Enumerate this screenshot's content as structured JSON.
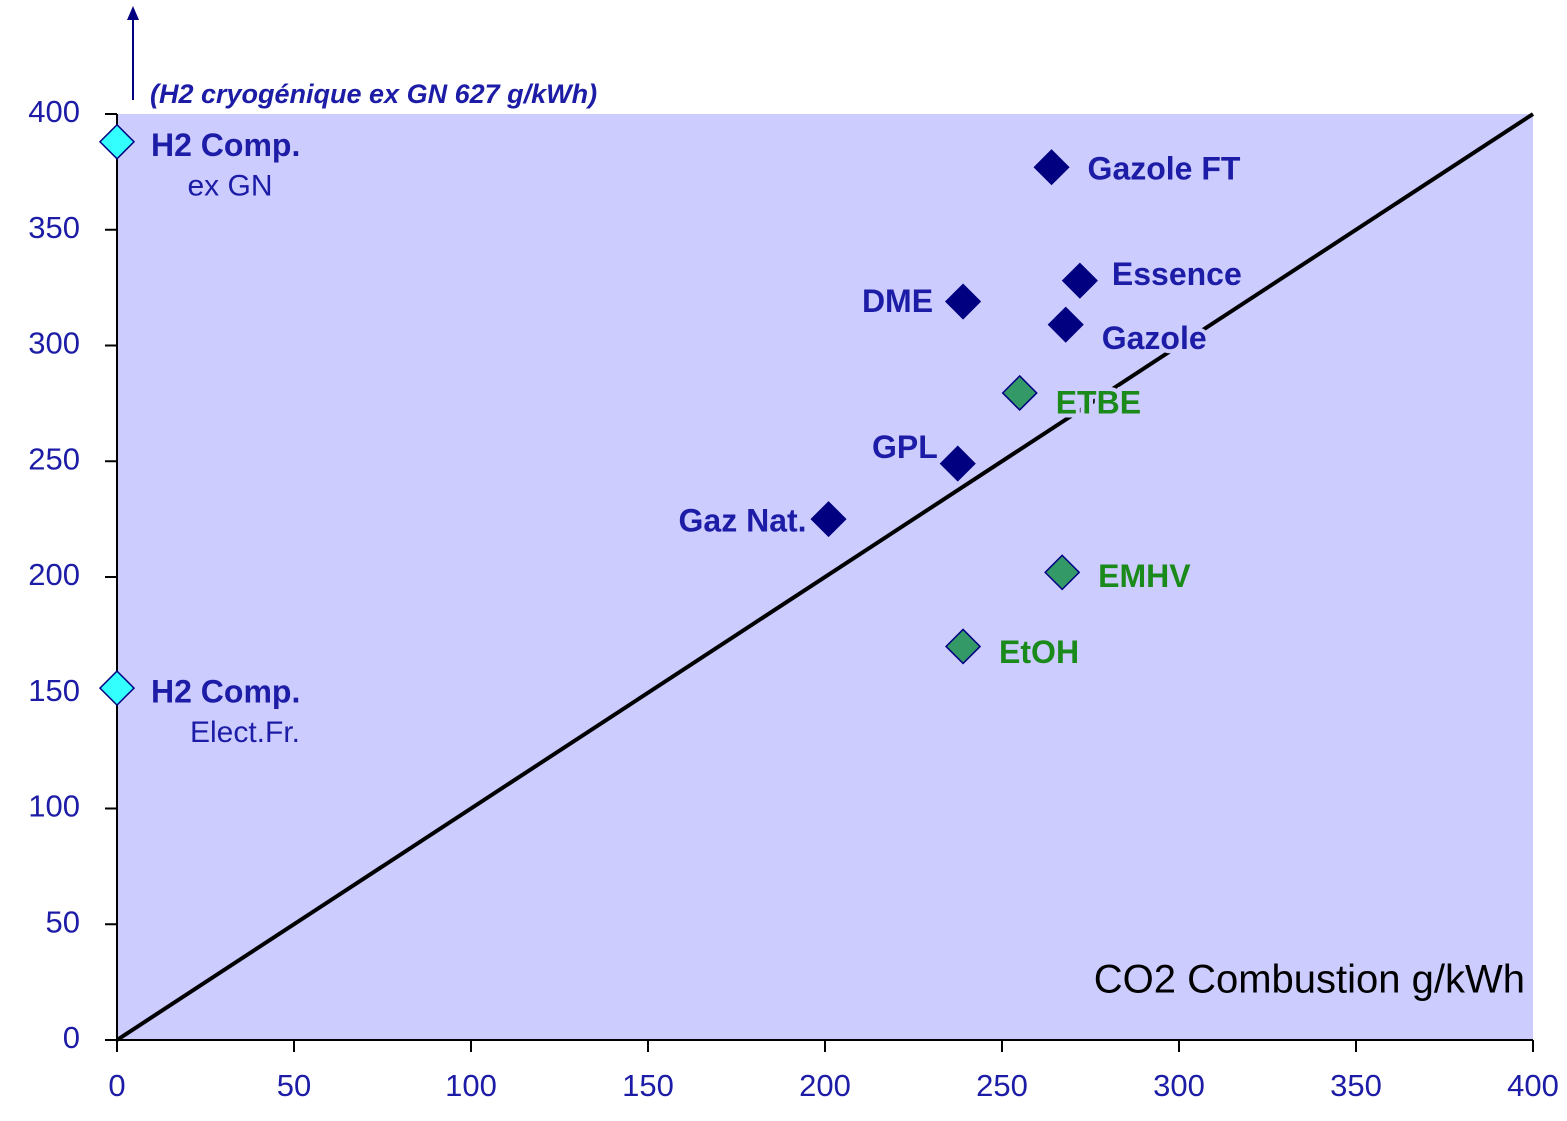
{
  "chart_data": {
    "type": "scatter",
    "annotation": "(H2 cryogénique ex GN 627 g/kWh)",
    "xlabel": "CO2 Combustion g/kWh",
    "xlim": [
      0,
      400
    ],
    "xticks": [
      0,
      50,
      100,
      150,
      200,
      250,
      300,
      350,
      400
    ],
    "ylim": [
      0,
      400
    ],
    "yticks": [
      0,
      50,
      100,
      150,
      200,
      250,
      300,
      350,
      400
    ],
    "background": "#ccccff",
    "diagonal": {
      "x": [
        0,
        400
      ],
      "y": [
        0,
        400
      ],
      "color": "#000000"
    },
    "series": [
      {
        "color": "#33ffff",
        "label_color": "#1c1ca6",
        "x": [
          0,
          0
        ],
        "values": [
          388,
          152
        ],
        "labels": [
          [
            "H2 Comp.",
            "ex GN"
          ],
          [
            "H2 Comp.",
            "Elect.Fr."
          ]
        ]
      },
      {
        "color": "#000080",
        "label_color": "#1c1ca6",
        "x": [
          264,
          272,
          239,
          268,
          237.5,
          201
        ],
        "values": [
          377,
          328,
          319,
          309,
          249,
          225
        ],
        "labels": [
          [
            "Gazole FT"
          ],
          [
            "Essence"
          ],
          [
            "DME"
          ],
          [
            "Gazole"
          ],
          [
            "GPL"
          ],
          [
            "Gaz Nat."
          ]
        ]
      },
      {
        "color": "#339966",
        "label_color": "#1a8a1a",
        "x": [
          255,
          267,
          239
        ],
        "values": [
          279.5,
          202,
          170
        ],
        "labels": [
          [
            "ETBE"
          ],
          [
            "EMHV"
          ],
          [
            "EtOH"
          ]
        ]
      }
    ]
  }
}
